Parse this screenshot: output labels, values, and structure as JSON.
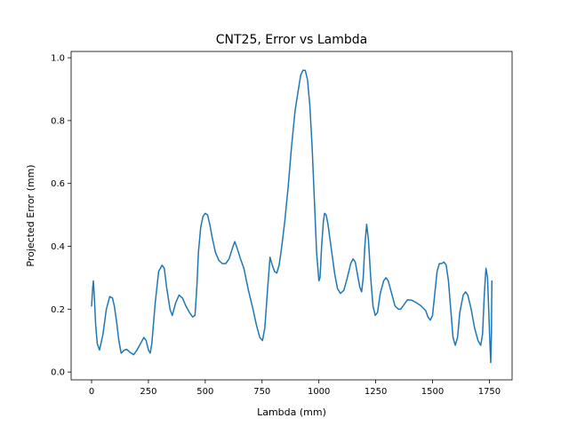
{
  "chart_data": {
    "type": "line",
    "title": "CNT25, Error vs Lambda",
    "xlabel": "Lambda (mm)",
    "ylabel": "Projected Error (mm)",
    "xlim": [
      -90,
      1850
    ],
    "ylim": [
      -0.025,
      1.02
    ],
    "xticks": [
      0,
      250,
      500,
      750,
      1000,
      1250,
      1500,
      1750
    ],
    "yticks": [
      0.0,
      0.2,
      0.4,
      0.6,
      0.8,
      1.0
    ],
    "xtick_labels": [
      "0",
      "250",
      "500",
      "750",
      "1000",
      "1250",
      "1500",
      "1750"
    ],
    "ytick_labels": [
      "0.0",
      "0.2",
      "0.4",
      "0.6",
      "0.8",
      "1.0"
    ],
    "grid": false,
    "series": [
      {
        "color": "#1f77b4",
        "points": [
          [
            0,
            0.21
          ],
          [
            5,
            0.27
          ],
          [
            8,
            0.29
          ],
          [
            12,
            0.24
          ],
          [
            18,
            0.15
          ],
          [
            25,
            0.09
          ],
          [
            35,
            0.07
          ],
          [
            50,
            0.12
          ],
          [
            65,
            0.2
          ],
          [
            80,
            0.24
          ],
          [
            92,
            0.235
          ],
          [
            100,
            0.21
          ],
          [
            110,
            0.16
          ],
          [
            120,
            0.1
          ],
          [
            130,
            0.06
          ],
          [
            145,
            0.07
          ],
          [
            155,
            0.072
          ],
          [
            170,
            0.062
          ],
          [
            185,
            0.055
          ],
          [
            200,
            0.07
          ],
          [
            215,
            0.09
          ],
          [
            230,
            0.11
          ],
          [
            240,
            0.1
          ],
          [
            250,
            0.07
          ],
          [
            258,
            0.06
          ],
          [
            265,
            0.09
          ],
          [
            280,
            0.22
          ],
          [
            295,
            0.32
          ],
          [
            310,
            0.34
          ],
          [
            320,
            0.33
          ],
          [
            330,
            0.27
          ],
          [
            345,
            0.2
          ],
          [
            355,
            0.18
          ],
          [
            370,
            0.22
          ],
          [
            385,
            0.245
          ],
          [
            400,
            0.235
          ],
          [
            415,
            0.21
          ],
          [
            430,
            0.19
          ],
          [
            445,
            0.175
          ],
          [
            455,
            0.18
          ],
          [
            463,
            0.27
          ],
          [
            470,
            0.38
          ],
          [
            480,
            0.46
          ],
          [
            490,
            0.495
          ],
          [
            500,
            0.505
          ],
          [
            510,
            0.5
          ],
          [
            520,
            0.47
          ],
          [
            530,
            0.43
          ],
          [
            545,
            0.38
          ],
          [
            560,
            0.355
          ],
          [
            575,
            0.345
          ],
          [
            590,
            0.345
          ],
          [
            605,
            0.36
          ],
          [
            620,
            0.395
          ],
          [
            630,
            0.415
          ],
          [
            640,
            0.395
          ],
          [
            655,
            0.36
          ],
          [
            670,
            0.33
          ],
          [
            690,
            0.26
          ],
          [
            710,
            0.2
          ],
          [
            725,
            0.15
          ],
          [
            740,
            0.11
          ],
          [
            752,
            0.1
          ],
          [
            762,
            0.14
          ],
          [
            775,
            0.27
          ],
          [
            785,
            0.365
          ],
          [
            795,
            0.34
          ],
          [
            805,
            0.32
          ],
          [
            815,
            0.315
          ],
          [
            825,
            0.34
          ],
          [
            835,
            0.39
          ],
          [
            850,
            0.48
          ],
          [
            865,
            0.59
          ],
          [
            880,
            0.72
          ],
          [
            895,
            0.83
          ],
          [
            910,
            0.9
          ],
          [
            920,
            0.945
          ],
          [
            930,
            0.96
          ],
          [
            940,
            0.96
          ],
          [
            950,
            0.93
          ],
          [
            960,
            0.85
          ],
          [
            970,
            0.72
          ],
          [
            980,
            0.55
          ],
          [
            990,
            0.38
          ],
          [
            1000,
            0.29
          ],
          [
            1005,
            0.3
          ],
          [
            1012,
            0.4
          ],
          [
            1020,
            0.48
          ],
          [
            1025,
            0.505
          ],
          [
            1032,
            0.5
          ],
          [
            1040,
            0.47
          ],
          [
            1055,
            0.39
          ],
          [
            1070,
            0.31
          ],
          [
            1082,
            0.265
          ],
          [
            1095,
            0.25
          ],
          [
            1110,
            0.26
          ],
          [
            1125,
            0.3
          ],
          [
            1140,
            0.345
          ],
          [
            1150,
            0.36
          ],
          [
            1160,
            0.35
          ],
          [
            1170,
            0.31
          ],
          [
            1180,
            0.27
          ],
          [
            1188,
            0.255
          ],
          [
            1195,
            0.3
          ],
          [
            1202,
            0.4
          ],
          [
            1210,
            0.47
          ],
          [
            1218,
            0.42
          ],
          [
            1228,
            0.3
          ],
          [
            1238,
            0.21
          ],
          [
            1248,
            0.18
          ],
          [
            1258,
            0.19
          ],
          [
            1270,
            0.25
          ],
          [
            1285,
            0.29
          ],
          [
            1295,
            0.3
          ],
          [
            1305,
            0.29
          ],
          [
            1320,
            0.25
          ],
          [
            1335,
            0.21
          ],
          [
            1350,
            0.2
          ],
          [
            1360,
            0.2
          ],
          [
            1375,
            0.215
          ],
          [
            1390,
            0.23
          ],
          [
            1410,
            0.228
          ],
          [
            1430,
            0.22
          ],
          [
            1450,
            0.21
          ],
          [
            1470,
            0.195
          ],
          [
            1480,
            0.175
          ],
          [
            1490,
            0.165
          ],
          [
            1500,
            0.18
          ],
          [
            1510,
            0.25
          ],
          [
            1520,
            0.32
          ],
          [
            1530,
            0.345
          ],
          [
            1540,
            0.345
          ],
          [
            1550,
            0.35
          ],
          [
            1560,
            0.34
          ],
          [
            1570,
            0.29
          ],
          [
            1580,
            0.2
          ],
          [
            1590,
            0.11
          ],
          [
            1600,
            0.085
          ],
          [
            1610,
            0.11
          ],
          [
            1620,
            0.19
          ],
          [
            1635,
            0.245
          ],
          [
            1645,
            0.255
          ],
          [
            1655,
            0.245
          ],
          [
            1670,
            0.2
          ],
          [
            1685,
            0.14
          ],
          [
            1700,
            0.1
          ],
          [
            1712,
            0.085
          ],
          [
            1720,
            0.12
          ],
          [
            1728,
            0.25
          ],
          [
            1735,
            0.33
          ],
          [
            1742,
            0.3
          ],
          [
            1748,
            0.18
          ],
          [
            1753,
            0.08
          ],
          [
            1756,
            0.03
          ],
          [
            1759,
            0.12
          ],
          [
            1761,
            0.29
          ]
        ]
      }
    ]
  }
}
